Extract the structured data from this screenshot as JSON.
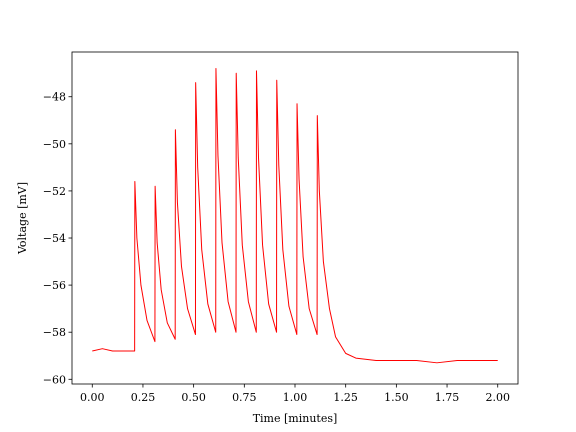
{
  "chart_data": {
    "type": "line",
    "xlabel": "Time [minutes]",
    "ylabel": "Voltage [mV]",
    "color": "#ff0000",
    "x": [
      0,
      0.05,
      0.1,
      0.15,
      0.2,
      0.209,
      0.21,
      0.22,
      0.24,
      0.27,
      0.309,
      0.31,
      0.32,
      0.34,
      0.37,
      0.409,
      0.41,
      0.42,
      0.44,
      0.47,
      0.509,
      0.51,
      0.52,
      0.54,
      0.57,
      0.609,
      0.61,
      0.62,
      0.64,
      0.67,
      0.709,
      0.71,
      0.72,
      0.74,
      0.77,
      0.809,
      0.81,
      0.82,
      0.84,
      0.87,
      0.909,
      0.91,
      0.92,
      0.94,
      0.97,
      1.009,
      1.01,
      1.02,
      1.04,
      1.07,
      1.109,
      1.11,
      1.12,
      1.14,
      1.17,
      1.2,
      1.25,
      1.3,
      1.4,
      1.5,
      1.6,
      1.7,
      1.8,
      1.9,
      2.0
    ],
    "values": [
      -58.8,
      -58.7,
      -58.8,
      -58.8,
      -58.8,
      -58.8,
      -51.6,
      -54.0,
      -56.0,
      -57.5,
      -58.4,
      -51.8,
      -54.2,
      -56.2,
      -57.6,
      -58.3,
      -49.4,
      -52.5,
      -55.2,
      -57.0,
      -58.1,
      -47.4,
      -51.0,
      -54.5,
      -56.8,
      -58.0,
      -46.8,
      -50.5,
      -54.2,
      -56.7,
      -58.0,
      -47.0,
      -50.6,
      -54.3,
      -56.7,
      -58.0,
      -46.9,
      -50.6,
      -54.3,
      -56.8,
      -58.0,
      -47.3,
      -50.9,
      -54.5,
      -56.9,
      -58.1,
      -48.3,
      -51.5,
      -54.8,
      -57.0,
      -58.1,
      -48.8,
      -52.0,
      -55.0,
      -57.0,
      -58.2,
      -58.9,
      -59.1,
      -59.2,
      -59.2,
      -59.2,
      -59.3,
      -59.2,
      -59.2,
      -59.2
    ],
    "xlim": [
      -0.1,
      2.1
    ],
    "ylim": [
      -60.2,
      -46.1
    ],
    "xticks": [
      {
        "value": 0,
        "label": "0.00"
      },
      0.25,
      {
        "value": 0.5,
        "label": "0.50"
      },
      0.75,
      {
        "value": 1,
        "label": "1.00"
      },
      1.25,
      {
        "value": 1.5,
        "label": "1.50"
      },
      1.75,
      {
        "value": 2,
        "label": "2.00"
      }
    ],
    "yticks": [
      {
        "value": -60,
        "label": "−60"
      },
      {
        "value": -58,
        "label": "−58"
      },
      {
        "value": -56,
        "label": "−56"
      },
      {
        "value": -54,
        "label": "−54"
      },
      {
        "value": -52,
        "label": "−52"
      },
      {
        "value": -50,
        "label": "−50"
      },
      {
        "value": -48,
        "label": "−48"
      }
    ]
  }
}
